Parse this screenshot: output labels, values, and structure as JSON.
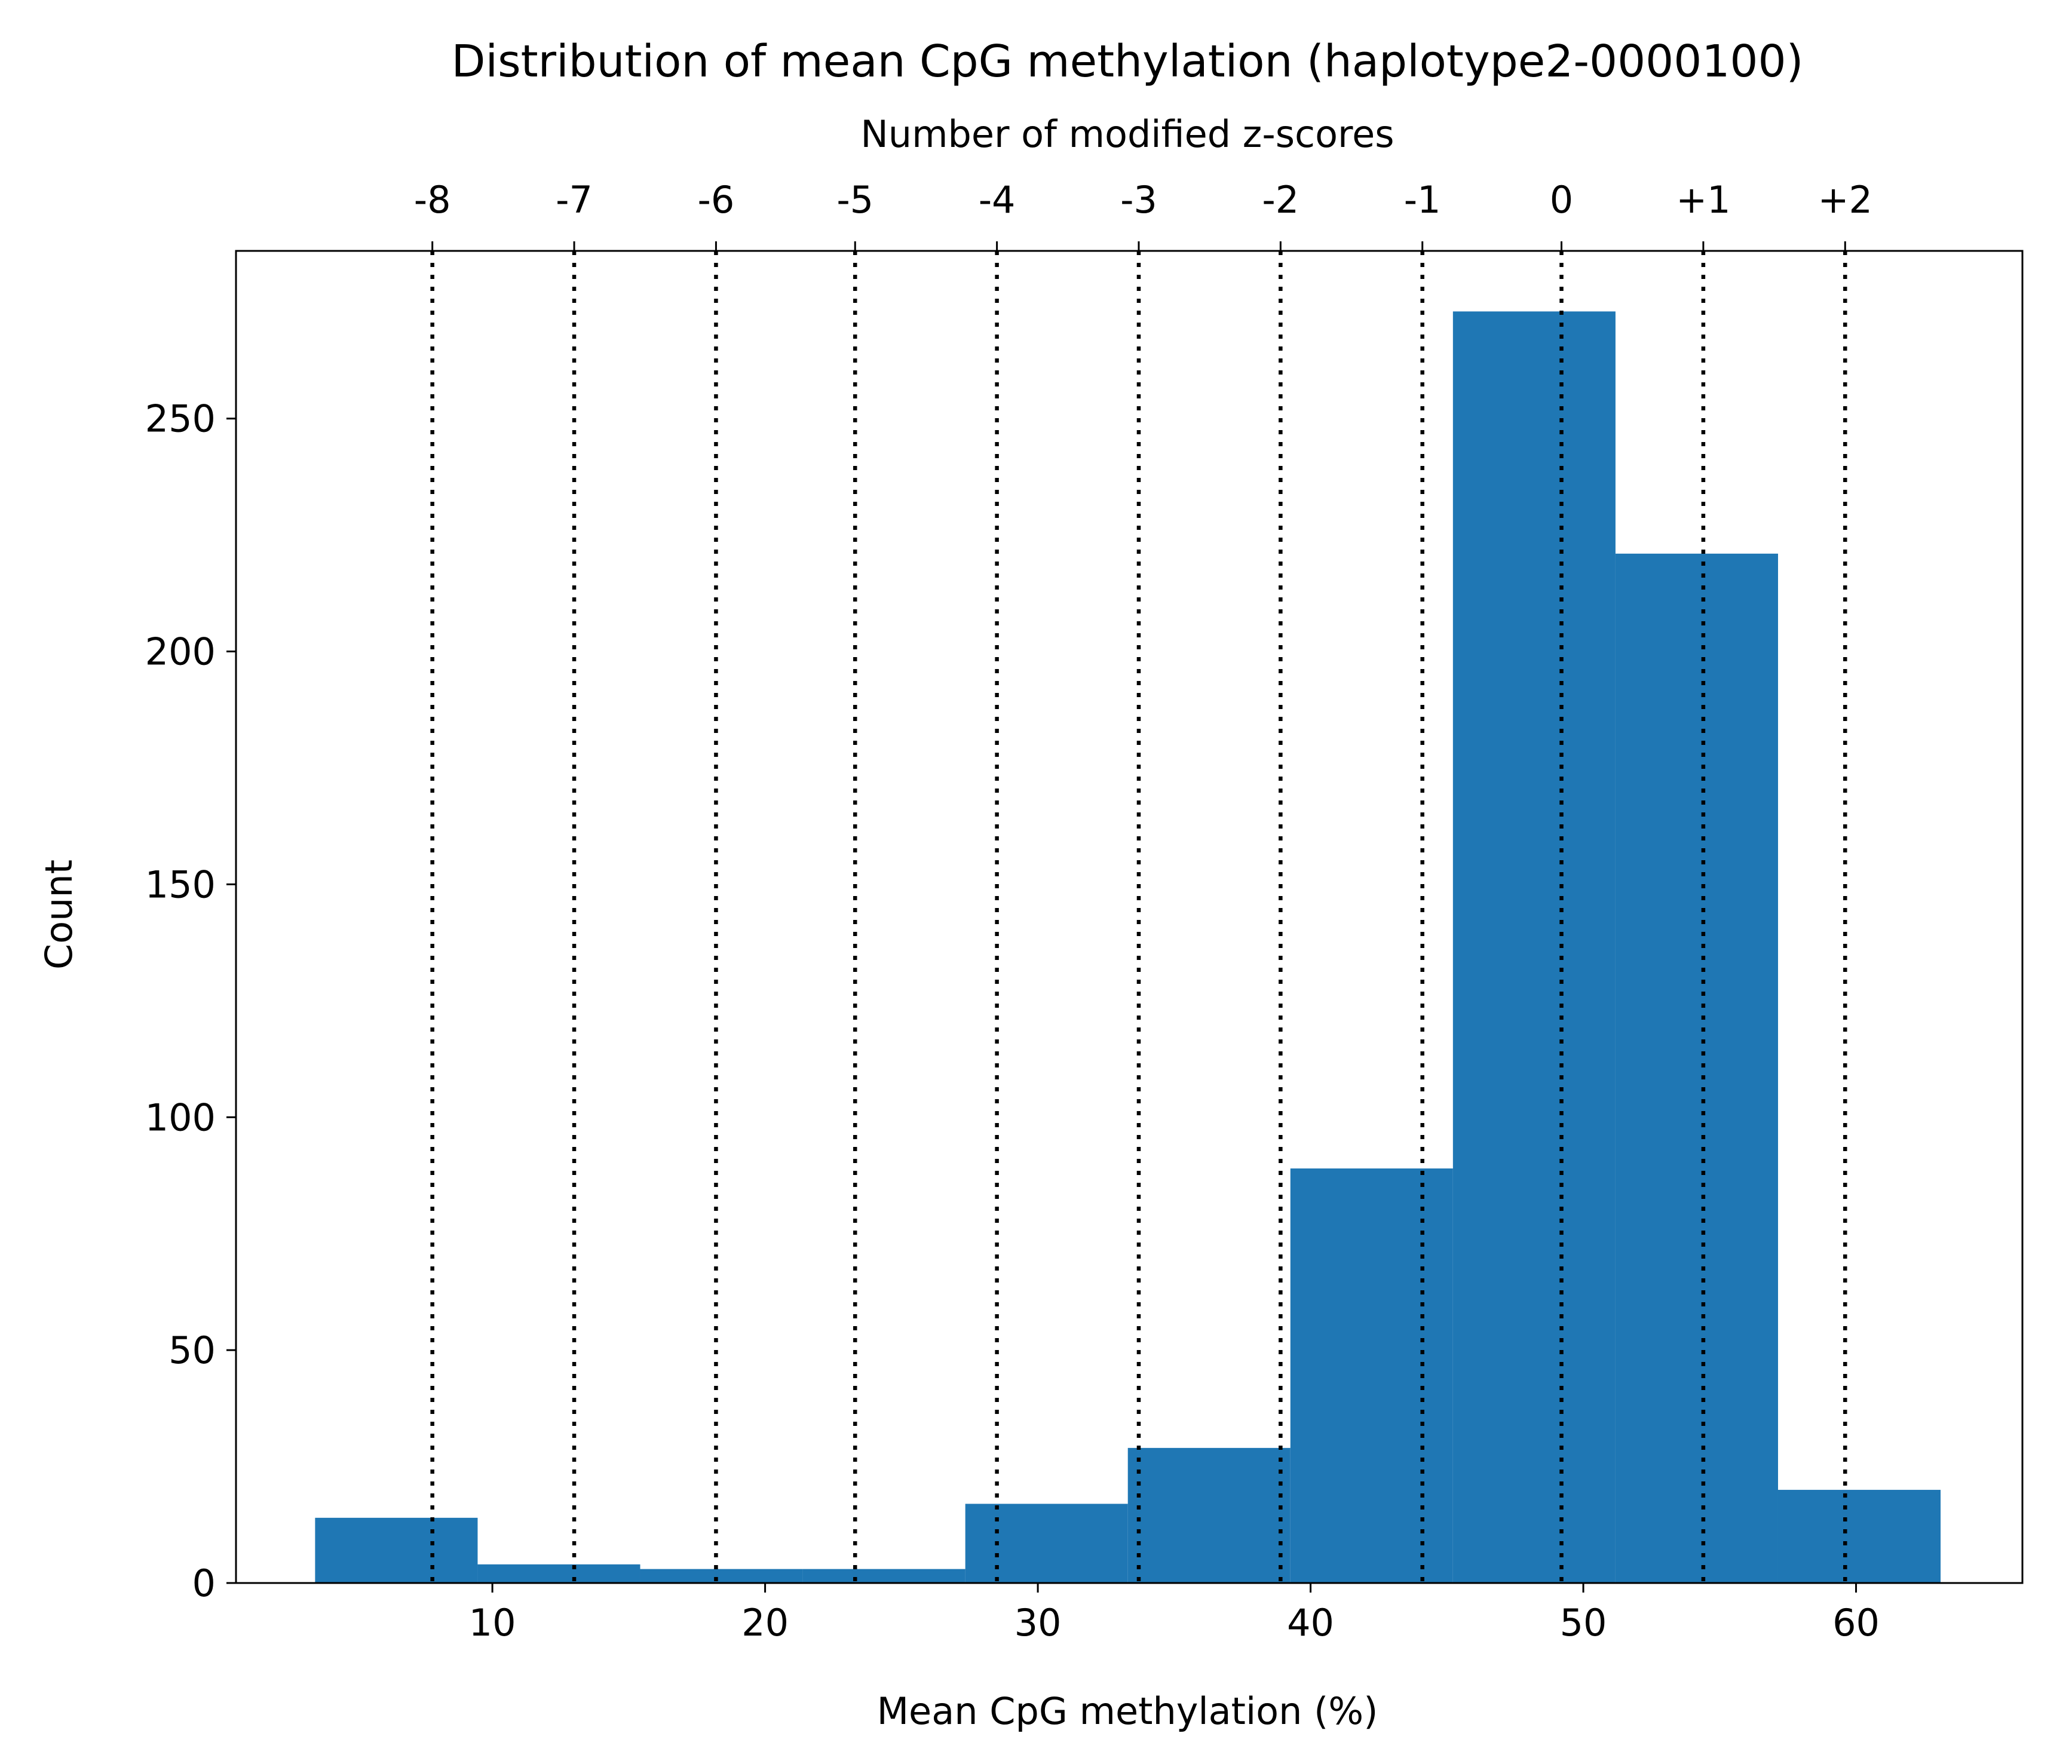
{
  "chart_data": {
    "type": "bar",
    "title": "Distribution of mean CpG methylation (haplotype2-0000100)",
    "xlabel": "Mean CpG methylation (%)",
    "ylabel": "Count",
    "top_xlabel": "Number of modified z-scores",
    "xlim": [
      0.6,
      66.1
    ],
    "ylim": [
      0,
      286
    ],
    "x_ticks": [
      10,
      20,
      30,
      40,
      50,
      60
    ],
    "y_ticks": [
      0,
      50,
      100,
      150,
      200,
      250
    ],
    "bar_color": "#1f77b4",
    "bins": [
      {
        "x0": 3.5,
        "x1": 9.46,
        "count": 14
      },
      {
        "x0": 9.46,
        "x1": 15.42,
        "count": 4
      },
      {
        "x0": 15.42,
        "x1": 21.38,
        "count": 3
      },
      {
        "x0": 21.38,
        "x1": 27.34,
        "count": 3
      },
      {
        "x0": 27.34,
        "x1": 33.3,
        "count": 17
      },
      {
        "x0": 33.3,
        "x1": 39.26,
        "count": 29
      },
      {
        "x0": 39.26,
        "x1": 45.22,
        "count": 89
      },
      {
        "x0": 45.22,
        "x1": 51.18,
        "count": 273
      },
      {
        "x0": 51.18,
        "x1": 57.14,
        "count": 221
      },
      {
        "x0": 57.14,
        "x1": 63.1,
        "count": 20
      }
    ],
    "zscore_lines": [
      {
        "label": "-8",
        "x": 7.8
      },
      {
        "label": "-7",
        "x": 13.0
      },
      {
        "label": "-6",
        "x": 18.2
      },
      {
        "label": "-5",
        "x": 23.3
      },
      {
        "label": "-4",
        "x": 28.5
      },
      {
        "label": "-3",
        "x": 33.7
      },
      {
        "label": "-2",
        "x": 38.9
      },
      {
        "label": "-1",
        "x": 44.1
      },
      {
        "label": "0",
        "x": 49.2
      },
      {
        "label": "+1",
        "x": 54.4
      },
      {
        "label": "+2",
        "x": 59.6
      }
    ],
    "zscore_line_style": "dotted",
    "zscore_line_color": "#000000",
    "grid": false,
    "legend": "none"
  }
}
